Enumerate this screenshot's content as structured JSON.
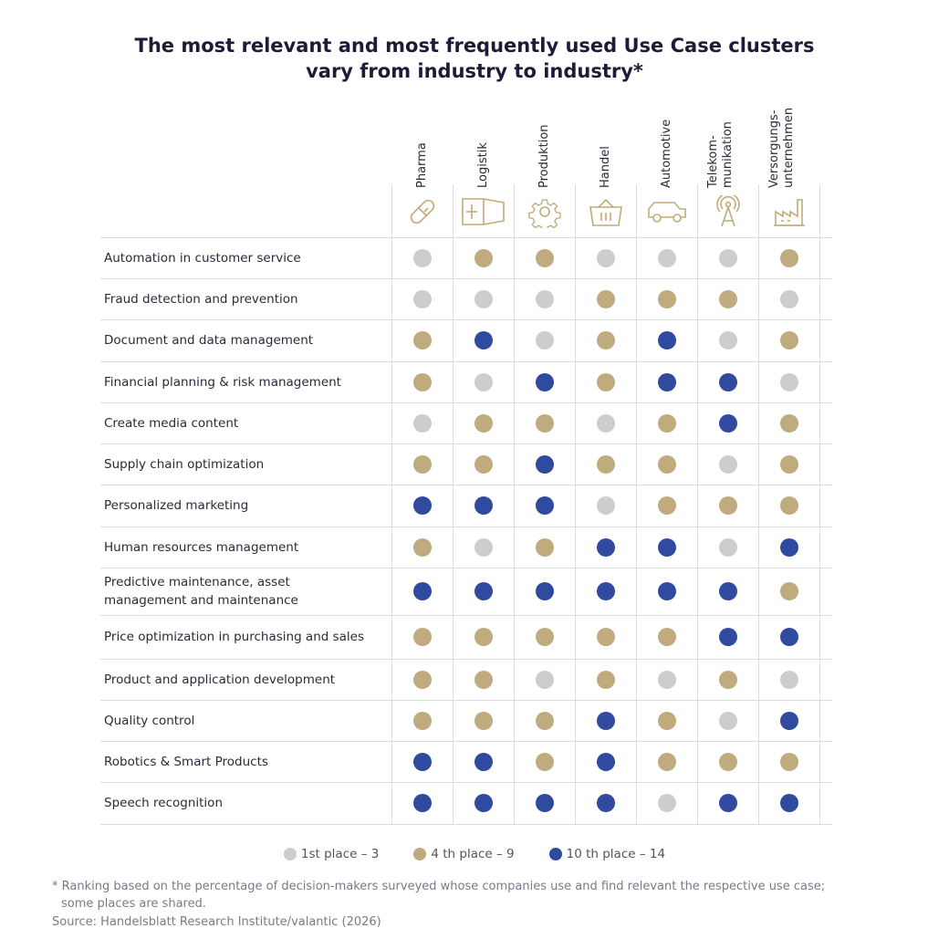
{
  "title_line1": "The most relevant and most frequently used Use Case clusters",
  "title_line2": "vary from industry to industry*",
  "colors": {
    "top3": "#cdcdcd",
    "top9": "#bfab7d",
    "top14": "#2f4a9f",
    "icon": "#c2ab78"
  },
  "chart_data": {
    "type": "table",
    "columns": [
      {
        "label": "Pharma",
        "icon": "pill-icon"
      },
      {
        "label": "Logistik",
        "icon": "container-icon"
      },
      {
        "label": "Produktion",
        "icon": "gear-icon"
      },
      {
        "label": "Handel",
        "icon": "basket-icon"
      },
      {
        "label": "Automotive",
        "icon": "car-icon"
      },
      {
        "label": "Telekom-\nmunikation",
        "icon": "antenna-tower-icon"
      },
      {
        "label": "Versorgungs-\nunternehmen",
        "icon": "factory-icon"
      }
    ],
    "rows": [
      {
        "label": "Automation in customer service",
        "values": [
          "1-3",
          "4-9",
          "4-9",
          "1-3",
          "1-3",
          "1-3",
          "4-9"
        ]
      },
      {
        "label": "Fraud detection and prevention",
        "values": [
          "1-3",
          "1-3",
          "1-3",
          "4-9",
          "4-9",
          "4-9",
          "1-3"
        ]
      },
      {
        "label": "Document and data management",
        "values": [
          "4-9",
          "10-14",
          "1-3",
          "4-9",
          "10-14",
          "1-3",
          "4-9"
        ]
      },
      {
        "label": "Financial planning & risk management",
        "values": [
          "4-9",
          "1-3",
          "10-14",
          "4-9",
          "10-14",
          "10-14",
          "1-3"
        ]
      },
      {
        "label": "Create media content",
        "values": [
          "1-3",
          "4-9",
          "4-9",
          "1-3",
          "4-9",
          "10-14",
          "4-9"
        ]
      },
      {
        "label": "Supply chain optimization",
        "values": [
          "4-9",
          "4-9",
          "10-14",
          "4-9",
          "4-9",
          "1-3",
          "4-9"
        ]
      },
      {
        "label": "Personalized marketing",
        "values": [
          "10-14",
          "10-14",
          "10-14",
          "1-3",
          "4-9",
          "4-9",
          "4-9"
        ]
      },
      {
        "label": "Human resources management",
        "values": [
          "4-9",
          "1-3",
          "4-9",
          "10-14",
          "10-14",
          "1-3",
          "10-14"
        ]
      },
      {
        "label": "Predictive maintenance, asset\nmanagement and maintenance",
        "values": [
          "10-14",
          "10-14",
          "10-14",
          "10-14",
          "10-14",
          "10-14",
          "4-9"
        ]
      },
      {
        "label": "Price optimization in purchasing and sales",
        "values": [
          "4-9",
          "4-9",
          "4-9",
          "4-9",
          "4-9",
          "10-14",
          "10-14"
        ]
      },
      {
        "label": "Product and application development",
        "values": [
          "4-9",
          "4-9",
          "1-3",
          "4-9",
          "1-3",
          "4-9",
          "1-3"
        ]
      },
      {
        "label": "Quality control",
        "values": [
          "4-9",
          "4-9",
          "4-9",
          "10-14",
          "4-9",
          "1-3",
          "10-14"
        ]
      },
      {
        "label": "Robotics & Smart Products",
        "values": [
          "10-14",
          "10-14",
          "4-9",
          "10-14",
          "4-9",
          "4-9",
          "4-9"
        ]
      },
      {
        "label": "Speech recognition",
        "values": [
          "10-14",
          "10-14",
          "10-14",
          "10-14",
          "1-3",
          "10-14",
          "10-14"
        ]
      }
    ],
    "legend": [
      {
        "key": "1-3",
        "label": "1st place – 3"
      },
      {
        "key": "4-9",
        "label": "4 th place – 9"
      },
      {
        "key": "10-14",
        "label": "10 th place – 14"
      }
    ],
    "legend_placement": "bottom"
  },
  "footnote_line1": "* Ranking based on the percentage of decision-makers surveyed whose companies use and find relevant the respective use case;",
  "footnote_line2": "some places are shared.",
  "source": "Source: Handelsblatt Research Institute/valantic (2026)"
}
